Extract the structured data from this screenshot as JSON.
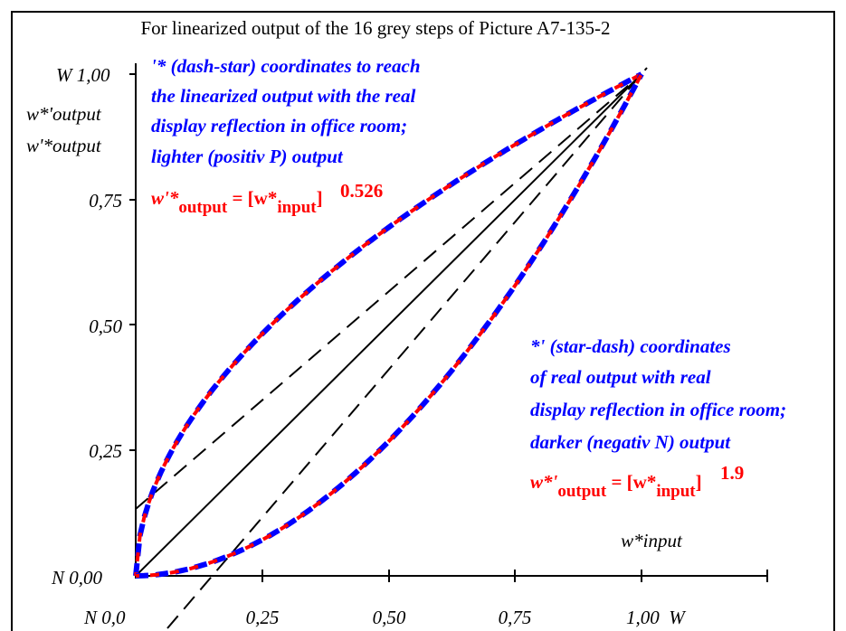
{
  "chart_data": {
    "type": "line",
    "title": "For linearized output of the 16 grey steps of Picture A7-135-2",
    "y_labels": [
      "W 1,00",
      "0,75",
      "0,50",
      "0,25",
      "N 0,00"
    ],
    "y_axis_titles": [
      "w*'output",
      "w'*output"
    ],
    "x_labels": [
      "N 0,0",
      "0,25",
      "0,50",
      "0,75",
      "1,00  W"
    ],
    "x_axis_title": "w*input",
    "xlim": [
      0,
      1.25
    ],
    "ylim": [
      0,
      1
    ],
    "annotation_upper": {
      "lines": [
        "'* (dash-star) coordinates to reach",
        "the linearized output with the real",
        "display reflection in office room;",
        "lighter (positiv P) output"
      ],
      "formula_lhs": "w'*",
      "formula_sub1": "output",
      "formula_eq": " = [w*",
      "formula_sub2": "input",
      "formula_close": "]",
      "exponent": "0.526"
    },
    "annotation_lower": {
      "lines": [
        "*' (star-dash) coordinates",
        "of real output with real",
        "display reflection in office room;",
        "darker (negativ N) output"
      ],
      "formula_lhs": "w*'",
      "formula_sub1": "output",
      "formula_eq": " = [w*",
      "formula_sub2": "input",
      "formula_close": "]",
      "exponent": "1.9"
    },
    "series": [
      {
        "exponent": 0.526,
        "color_outer": "#0000ff",
        "color_inner": "#ff0000"
      },
      {
        "exponent": 1.9,
        "color_outer": "#0000ff",
        "color_inner": "#ff0000"
      }
    ],
    "reference_lines": [
      {
        "style": "solid",
        "x": [
          0,
          1
        ],
        "y": [
          0,
          1
        ]
      },
      {
        "style": "dashed",
        "x": [
          0,
          1
        ],
        "y": [
          0.133,
          1
        ]
      },
      {
        "style": "dashed",
        "x": [
          0.067,
          1.0
        ],
        "y": [
          -0.1,
          1.0
        ]
      }
    ]
  }
}
